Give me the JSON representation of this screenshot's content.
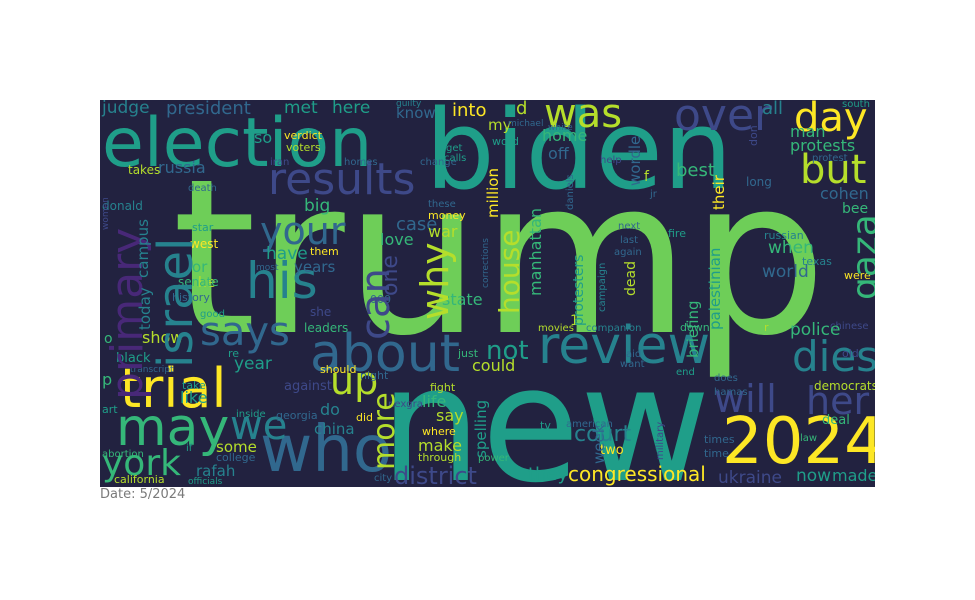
{
  "caption": "Date: 5/2024",
  "palette": {
    "background": "#222240",
    "c0": "#fde725",
    "c1": "#b5de2b",
    "c2": "#6ece58",
    "c3": "#35b779",
    "c4": "#1f9e89",
    "c5": "#26828e",
    "c6": "#31688e",
    "c7": "#3e4989",
    "c8": "#482878",
    "c9": "#440154"
  },
  "words": [
    {
      "text": "trump",
      "color": "c2"
    },
    {
      "text": "new",
      "color": "c4"
    },
    {
      "text": "biden",
      "color": "c4"
    },
    {
      "text": "election",
      "color": "c4"
    },
    {
      "text": "2024",
      "color": "c0"
    },
    {
      "text": "who",
      "color": "c6"
    },
    {
      "text": "review",
      "color": "c5"
    },
    {
      "text": "trial",
      "color": "c0"
    },
    {
      "text": "may",
      "color": "c3"
    },
    {
      "text": "about",
      "color": "c6"
    },
    {
      "text": "results",
      "color": "c7"
    },
    {
      "text": "israel",
      "color": "c5"
    },
    {
      "text": "primary",
      "color": "c8"
    },
    {
      "text": "his",
      "color": "c5"
    },
    {
      "text": "your",
      "color": "c6"
    },
    {
      "text": "says",
      "color": "c6"
    },
    {
      "text": "over",
      "color": "c7"
    },
    {
      "text": "was",
      "color": "c1"
    },
    {
      "text": "day",
      "color": "c0"
    },
    {
      "text": "but",
      "color": "c1"
    },
    {
      "text": "gaza",
      "color": "c3"
    },
    {
      "text": "dies",
      "color": "c5"
    },
    {
      "text": "will",
      "color": "c7"
    },
    {
      "text": "her",
      "color": "c7"
    },
    {
      "text": "york",
      "color": "c3"
    },
    {
      "text": "we",
      "color": "c5"
    },
    {
      "text": "can",
      "color": "c7"
    },
    {
      "text": "why",
      "color": "c1"
    },
    {
      "text": "up",
      "color": "c1"
    },
    {
      "text": "house",
      "color": "c1"
    },
    {
      "text": "more",
      "color": "c1"
    },
    {
      "text": "one",
      "color": "c7"
    },
    {
      "text": "district",
      "color": "c7"
    },
    {
      "text": "congressional",
      "color": "c0"
    },
    {
      "text": "court",
      "color": "c5"
    },
    {
      "text": "not",
      "color": "c4"
    },
    {
      "text": "make",
      "color": "c1"
    },
    {
      "text": "they",
      "color": "c4"
    },
    {
      "text": "ukraine",
      "color": "c7"
    },
    {
      "text": "now",
      "color": "c4"
    },
    {
      "text": "made",
      "color": "c4"
    },
    {
      "text": "judge",
      "color": "c5"
    },
    {
      "text": "president",
      "color": "c6"
    },
    {
      "text": "met",
      "color": "c4"
    },
    {
      "text": "here",
      "color": "c4"
    },
    {
      "text": "into",
      "color": "c0"
    },
    {
      "text": "know",
      "color": "c6"
    },
    {
      "text": "home",
      "color": "c3"
    },
    {
      "text": "off",
      "color": "c6"
    },
    {
      "text": "wordle",
      "color": "c6"
    },
    {
      "text": "all",
      "color": "c5"
    },
    {
      "text": "man",
      "color": "c3"
    },
    {
      "text": "protests",
      "color": "c3"
    },
    {
      "text": "best",
      "color": "c3"
    },
    {
      "text": "their",
      "color": "c0"
    },
    {
      "text": "cohen",
      "color": "c6"
    },
    {
      "text": "bee",
      "color": "c3"
    },
    {
      "text": "long",
      "color": "c6"
    },
    {
      "text": "russia",
      "color": "c6"
    },
    {
      "text": "so",
      "color": "c4"
    },
    {
      "text": "verdict",
      "color": "c0"
    },
    {
      "text": "voters",
      "color": "c1"
    },
    {
      "text": "donald",
      "color": "c5"
    },
    {
      "text": "takes",
      "color": "c1"
    },
    {
      "text": "big",
      "color": "c3"
    },
    {
      "text": "have",
      "color": "c4"
    },
    {
      "text": "years",
      "color": "c6"
    },
    {
      "text": "case",
      "color": "c6"
    },
    {
      "text": "love",
      "color": "c3"
    },
    {
      "text": "war",
      "color": "c1"
    },
    {
      "text": "campus",
      "color": "c5"
    },
    {
      "text": "today",
      "color": "c5"
    },
    {
      "text": "or",
      "color": "c3"
    },
    {
      "text": "he",
      "color": "c1"
    },
    {
      "text": "show",
      "color": "c1"
    },
    {
      "text": "money",
      "color": "c0"
    },
    {
      "text": "million",
      "color": "c0"
    },
    {
      "text": "manhattan",
      "color": "c3"
    },
    {
      "text": "protesters",
      "color": "c4"
    },
    {
      "text": "dead",
      "color": "c1"
    },
    {
      "text": "briefing",
      "color": "c3"
    },
    {
      "text": "palestinian",
      "color": "c4"
    },
    {
      "text": "when",
      "color": "c3"
    },
    {
      "text": "world",
      "color": "c6"
    },
    {
      "text": "police",
      "color": "c3"
    },
    {
      "text": "russian",
      "color": "c5"
    },
    {
      "text": "texas",
      "color": "c5"
    },
    {
      "text": "were",
      "color": "c0"
    },
    {
      "text": "year",
      "color": "c4"
    },
    {
      "text": "could",
      "color": "c1"
    },
    {
      "text": "life",
      "color": "c3"
    },
    {
      "text": "say",
      "color": "c1"
    },
    {
      "text": "do",
      "color": "c5"
    },
    {
      "text": "china",
      "color": "c5"
    },
    {
      "text": "like",
      "color": "c4"
    },
    {
      "text": "some",
      "color": "c1"
    },
    {
      "text": "rafah",
      "color": "c5"
    },
    {
      "text": "spelling",
      "color": "c4"
    },
    {
      "text": "week",
      "color": "c6"
    },
    {
      "text": "democrats",
      "color": "c1"
    },
    {
      "text": "deal",
      "color": "c3"
    },
    {
      "text": "state",
      "color": "c3"
    },
    {
      "text": "leaders",
      "color": "c3"
    },
    {
      "text": "senate",
      "color": "c3"
    },
    {
      "text": "west",
      "color": "c0"
    },
    {
      "text": "history",
      "color": "c6"
    },
    {
      "text": "black",
      "color": "c4"
    },
    {
      "text": "california",
      "color": "c1"
    },
    {
      "text": "officials",
      "color": "c4"
    },
    {
      "text": "abortion",
      "color": "c3"
    },
    {
      "text": "college",
      "color": "c6"
    },
    {
      "text": "should",
      "color": "c0"
    },
    {
      "text": "did",
      "color": "c0"
    },
    {
      "text": "fight",
      "color": "c1"
    },
    {
      "text": "where",
      "color": "c0"
    },
    {
      "text": "through",
      "color": "c1"
    },
    {
      "text": "power",
      "color": "c3"
    },
    {
      "text": "two",
      "color": "c0"
    },
    {
      "text": "time",
      "color": "c6"
    },
    {
      "text": "times",
      "color": "c6"
    },
    {
      "text": "law",
      "color": "c3"
    },
    {
      "text": "end",
      "color": "c4"
    },
    {
      "text": "want",
      "color": "c6"
    },
    {
      "text": "aid",
      "color": "c6"
    },
    {
      "text": "hamas",
      "color": "c6"
    },
    {
      "text": "does",
      "color": "c6"
    },
    {
      "text": "down",
      "color": "c3"
    },
    {
      "text": "companion",
      "color": "c5"
    },
    {
      "text": "movies",
      "color": "c1"
    },
    {
      "text": "just",
      "color": "c3"
    },
    {
      "text": "tv",
      "color": "c4"
    },
    {
      "text": "american",
      "color": "c6"
    },
    {
      "text": "campaign",
      "color": "c5"
    },
    {
      "text": "again",
      "color": "c6"
    },
    {
      "text": "last",
      "color": "c6"
    },
    {
      "text": "fire",
      "color": "c4"
    },
    {
      "text": "next",
      "color": "c6"
    },
    {
      "text": "help",
      "color": "c7"
    },
    {
      "text": "change",
      "color": "c6"
    },
    {
      "text": "homes",
      "color": "c6"
    },
    {
      "text": "guilty",
      "color": "c5"
    },
    {
      "text": "white",
      "color": "c6"
    },
    {
      "text": "word",
      "color": "c4"
    },
    {
      "text": "michael",
      "color": "c6"
    },
    {
      "text": "get",
      "color": "c4"
    },
    {
      "text": "calls",
      "color": "c4"
    },
    {
      "text": "these",
      "color": "c6"
    },
    {
      "text": "daniels",
      "color": "c6"
    },
    {
      "text": "corrections",
      "color": "c6"
    },
    {
      "text": "south",
      "color": "c4"
    },
    {
      "text": "protest",
      "color": "c6"
    },
    {
      "text": "don",
      "color": "c7"
    },
    {
      "text": "georgia",
      "color": "c6"
    },
    {
      "text": "against",
      "color": "c7"
    },
    {
      "text": "inside",
      "color": "c4"
    },
    {
      "text": "take",
      "color": "c4"
    },
    {
      "text": "art",
      "color": "c4"
    },
    {
      "text": "if",
      "color": "c4"
    },
    {
      "text": "city",
      "color": "c6"
    },
    {
      "text": "death",
      "color": "c6"
    },
    {
      "text": "star",
      "color": "c4"
    },
    {
      "text": "most",
      "color": "c6"
    },
    {
      "text": "them",
      "color": "c0"
    },
    {
      "text": "night",
      "color": "c6"
    },
    {
      "text": "re",
      "color": "c4"
    },
    {
      "text": "transcript",
      "color": "c6"
    },
    {
      "text": "good",
      "color": "c4"
    },
    {
      "text": "000",
      "color": "c6"
    },
    {
      "text": "old",
      "color": "c7"
    },
    {
      "text": "chinese",
      "color": "c7"
    },
    {
      "text": "she",
      "color": "c7"
    },
    {
      "text": "nexgra",
      "color": "c7"
    },
    {
      "text": "military",
      "color": "c7"
    },
    {
      "text": "iran",
      "color": "c7"
    },
    {
      "text": "women",
      "color": "c7"
    },
    {
      "text": "d",
      "color": "c1"
    },
    {
      "text": "my",
      "color": "c1"
    },
    {
      "text": "f",
      "color": "c1"
    },
    {
      "text": "r",
      "color": "c1"
    },
    {
      "text": "p",
      "color": "c3"
    },
    {
      "text": "o",
      "color": "c3"
    },
    {
      "text": "jr",
      "color": "c6"
    },
    {
      "text": "1",
      "color": "c1"
    }
  ]
}
